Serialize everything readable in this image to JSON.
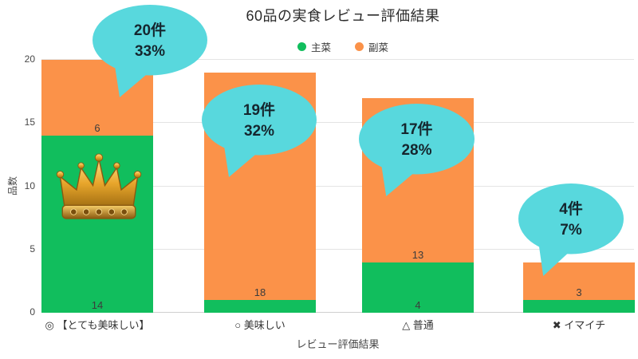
{
  "colors": {
    "background": "#ffffff",
    "gridline": "#e4e4e4",
    "axis_text": "#474747",
    "title_text": "#2b2b2b",
    "bar_label_text": "#3c3c3c"
  },
  "chart_data": {
    "type": "bar",
    "stacked": true,
    "title": "60品の実食レビュー評価結果",
    "xlabel": "レビュー評価結果",
    "ylabel": "品数",
    "ylim": [
      0,
      20
    ],
    "yticks": [
      0,
      5,
      10,
      15,
      20
    ],
    "grid": "horizontal",
    "legend_position": "top-center",
    "categories": [
      "◎ 【とても美味しい】",
      "○ 美味しい",
      "△ 普通",
      "✖ イマイチ"
    ],
    "series": [
      {
        "name": "主菜",
        "color": "#11be5d",
        "values": [
          14,
          1,
          4,
          1
        ],
        "visible_labels": [
          "14",
          "",
          "4",
          ""
        ]
      },
      {
        "name": "副菜",
        "color": "#fb9249",
        "values": [
          6,
          18,
          13,
          3
        ],
        "visible_labels": [
          "6",
          "18",
          "13",
          "3"
        ]
      }
    ],
    "totals": [
      20,
      19,
      17,
      4
    ],
    "annotations": [
      {
        "count": "20件",
        "pct": "33%"
      },
      {
        "count": "19件",
        "pct": "32%"
      },
      {
        "count": "17件",
        "pct": "28%"
      },
      {
        "count": "4件",
        "pct": "7%"
      }
    ],
    "annotation_bubble_color": "#58d8dd",
    "annotation_text_color": "#15262e",
    "decorations": [
      {
        "icon": "crown-icon",
        "category_index": 0,
        "description": "gold crown on top-rated bar"
      }
    ]
  }
}
